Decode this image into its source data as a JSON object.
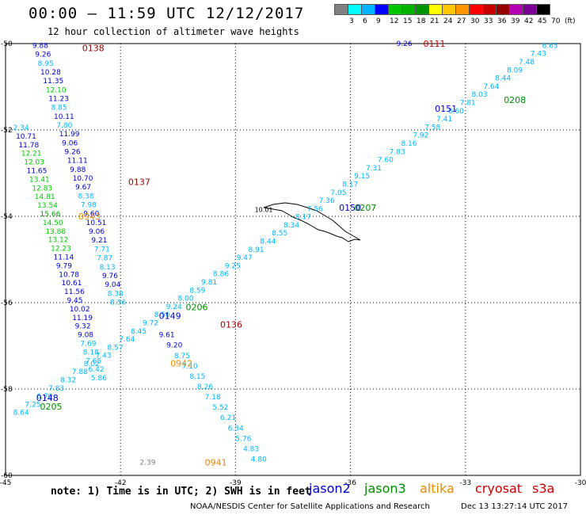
{
  "header": {
    "title": "00:00 – 11:59 UTC 12/12/2017",
    "subtitle": "12 hour collection of altimeter wave heights"
  },
  "legend": {
    "unit": "(ft)",
    "colors": [
      "#808080",
      "#00ffff",
      "#00b4ff",
      "#0000ff",
      "#00c800",
      "#00b400",
      "#009600",
      "#ffff00",
      "#ffc800",
      "#ff9600",
      "#ff0000",
      "#c80000",
      "#960000",
      "#b400b4",
      "#780096",
      "#000000"
    ],
    "labels": [
      "3",
      "6",
      "9",
      "12",
      "15",
      "18",
      "21",
      "24",
      "27",
      "30",
      "33",
      "36",
      "39",
      "42",
      "45",
      "70"
    ]
  },
  "axes": {
    "x_ticks": [
      "-45",
      "-42",
      "-39",
      "-36",
      "-33",
      "-30"
    ],
    "y_ticks": [
      "-50",
      "-52",
      "-54",
      "-56",
      "-58",
      "-60"
    ]
  },
  "chart_data": {
    "type": "scatter",
    "x_range": [
      -45,
      -30
    ],
    "y_range": [
      -60,
      -50
    ],
    "tracks": [
      {
        "satellite": "jason2",
        "time": "0138",
        "time_color": "#960000",
        "time_pos": [
          -43.0,
          -50.1
        ],
        "start": [
          -44.3,
          -50.1
        ],
        "step": [
          0.07,
          -0.205
        ],
        "color": "#0000c8",
        "heights": [
          "9.88",
          "9.26",
          "8.95",
          "10.28",
          "11.35",
          "12.10",
          "11.23",
          "8.85",
          "10.11",
          "7.80",
          "11.99",
          "9.06",
          "9.26",
          "11.11",
          "9.88",
          "10.70",
          "9.67",
          "8.38",
          "7.98",
          "9.60",
          "10.51",
          "9.06",
          "9.21",
          "7.71",
          "7.87",
          "8.13",
          "9.76",
          "9.04",
          "8.38",
          "8.56"
        ]
      },
      {
        "satellite": "jason2",
        "time": "0137",
        "time_color": "#960000",
        "time_pos": [
          -41.8,
          -53.2
        ],
        "start": [
          -44.8,
          -52.0
        ],
        "step": [
          0.07,
          -0.2
        ],
        "color": "#0000c8",
        "heights": [
          "2.34",
          "10.71",
          "11.78",
          "12.21",
          "12.03",
          "11.65",
          "13.41",
          "12.83",
          "14.81",
          "13.54",
          "15.66",
          "14.50",
          "13.88",
          "13.12",
          "12.23",
          "11.14",
          "9.79",
          "10.78",
          "10.61",
          "11.56",
          "9.45",
          "10.02",
          "11.19",
          "9.32",
          "9.08",
          "7.69",
          "8.18",
          "7.65",
          "6.42",
          "5.86"
        ]
      },
      {
        "satellite": "altika",
        "time": "0943",
        "time_color": "#e68c00",
        "time_pos": [
          -43.1,
          -54.0
        ]
      },
      {
        "satellite": "altika",
        "time": "0942",
        "time_color": "#e68c00",
        "time_pos": [
          -40.7,
          -57.4
        ]
      },
      {
        "satellite": "altika",
        "time": "0941",
        "time_color": "#e68c00",
        "time_pos": [
          -39.8,
          -59.7
        ]
      },
      {
        "satellite": "cryosat",
        "time": "0136",
        "time_color": "#960000",
        "time_pos": [
          -39.4,
          -56.5
        ]
      },
      {
        "satellite": "jason3",
        "time": "0206",
        "time_color": "#008c00",
        "time_pos": [
          -40.3,
          -56.1
        ]
      },
      {
        "satellite": "jason3",
        "time": "0205",
        "time_color": "#008c00",
        "time_pos": [
          -44.1,
          -58.4
        ]
      },
      {
        "satellite": "jason3",
        "time": "0207",
        "time_color": "#008c00",
        "time_pos": [
          -35.9,
          -53.8
        ]
      },
      {
        "satellite": "jason3",
        "time": "0208",
        "time_color": "#008c00",
        "time_pos": [
          -32.0,
          -51.3
        ]
      },
      {
        "satellite": "jason2",
        "time": "0148",
        "time_color": "#0000c8",
        "time_pos": [
          -44.2,
          -58.2
        ]
      },
      {
        "satellite": "jason2",
        "time": "0149",
        "time_color": "#0000c8",
        "time_pos": [
          -41.0,
          -56.3
        ]
      },
      {
        "satellite": "jason2",
        "time": "0150",
        "time_color": "#0000c8",
        "time_pos": [
          -36.3,
          -53.8
        ]
      },
      {
        "satellite": "jason2",
        "time": "0151",
        "time_color": "#0000c8",
        "time_pos": [
          -33.8,
          -51.5
        ]
      },
      {
        "satellite": "cryosat",
        "time": "0111",
        "time_color": "#c80000",
        "time_pos": [
          -34.1,
          -50.0
        ],
        "heights": [
          "9.26"
        ]
      }
    ],
    "cyan_ascending": [
      "8.64",
      "7.25",
      "6.70",
      "7.83",
      "8.32",
      "7.88",
      "8.02",
      "7.43",
      "8.57",
      "7.64",
      "8.45",
      "9.72",
      "8.56",
      "9.24",
      "8.00",
      "8.59",
      "9.81",
      "8.86",
      "9.25",
      "9.47",
      "8.91",
      "8.44",
      "8.55",
      "8.34",
      "8.17",
      "7.56",
      "7.36",
      "7.05",
      "8.17",
      "9.15",
      "7.31",
      "7.60",
      "7.83",
      "8.16",
      "7.92",
      "7.58",
      "7.41",
      "8.60",
      "7.81",
      "8.03",
      "7.64",
      "8.44",
      "8.09",
      "7.48",
      "7.43",
      "6.65"
    ],
    "track3": [
      "9.61",
      "9.20",
      "8.75",
      "7.10",
      "8.15",
      "8.26",
      "7.18",
      "5.52",
      "6.21",
      "6.34",
      "5.76",
      "4.83",
      "4.80"
    ],
    "grey_value": "2.39",
    "landmark_value": "10.01"
  },
  "footer": {
    "note": "note: 1) Time is in UTC; 2) SWH is in feet",
    "satellites": [
      {
        "name": "jason2",
        "color": "#0000c8"
      },
      {
        "name": "jason3",
        "color": "#008c00"
      },
      {
        "name": "altika",
        "color": "#e68c00"
      },
      {
        "name": "cryosat",
        "color": "#c80000"
      },
      {
        "name": "s3a",
        "color": "#c80000"
      }
    ],
    "credit": "NOAA/NESDIS Center for Satellite Applications and Research",
    "date": "Dec 13 13:27:14 UTC 2017"
  }
}
